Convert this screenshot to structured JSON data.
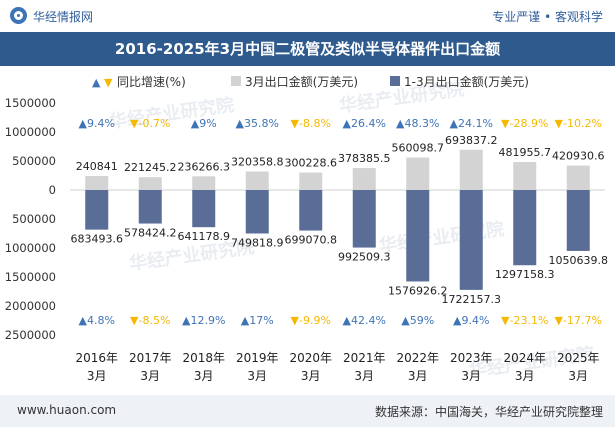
{
  "header": {
    "brand": "华经情报网",
    "tagline": "专业严谨 • 客观科学"
  },
  "footer": {
    "site": "www.huaon.com",
    "source": "数据来源：中国海关，华经产业研究院整理"
  },
  "watermark": "华经产业研究院",
  "colors": {
    "title_bg": "#2e5a8e",
    "bar_monthly": "#d3d3d3",
    "bar_cumulative": "#5a6d96",
    "up": "#3e74b6",
    "down": "#f5b800",
    "footer_bg": "#eef1f6"
  },
  "chart_data": {
    "type": "bar",
    "title": "2016-2025年3月中国二极管及类似半导体器件出口金额",
    "legend": [
      {
        "name": "同比增速(%)",
        "symbol_up": "▲",
        "symbol_down": "▼"
      },
      {
        "name": "3月出口金额(万美元)"
      },
      {
        "name": "1-3月出口金额(万美元)"
      }
    ],
    "categories": [
      "2016年\n3月",
      "2017年\n3月",
      "2018年\n3月",
      "2019年\n3月",
      "2020年\n3月",
      "2021年\n3月",
      "2022年\n3月",
      "2023年\n3月",
      "2024年\n3月",
      "2025年\n3月"
    ],
    "category_lines": [
      [
        "2016年",
        "3月"
      ],
      [
        "2017年",
        "3月"
      ],
      [
        "2018年",
        "3月"
      ],
      [
        "2019年",
        "3月"
      ],
      [
        "2020年",
        "3月"
      ],
      [
        "2021年",
        "3月"
      ],
      [
        "2022年",
        "3月"
      ],
      [
        "2023年",
        "3月"
      ],
      [
        "2024年",
        "3月"
      ],
      [
        "2025年",
        "3月"
      ]
    ],
    "series": [
      {
        "name": "3月出口金额(万美元)",
        "values": [
          240841,
          221245.2,
          236266.3,
          320358.8,
          300228.6,
          378385.5,
          560098.7,
          693837.2,
          481955.7,
          420930.6
        ]
      },
      {
        "name": "1-3月出口金额(万美元)",
        "values": [
          683493.6,
          578424.2,
          641178.9,
          749818.9,
          699070.8,
          992509.3,
          1576926.2,
          1722157.3,
          1297158.3,
          1050639.8
        ],
        "plotted_as": "negative"
      }
    ],
    "value_labels_monthly": [
      "240841",
      "221245.2",
      "236266.3",
      "320358.8",
      "300228.6",
      "378385.5",
      "560098.7",
      "693837.2",
      "481955.7",
      "420930.6"
    ],
    "value_labels_cumulative": [
      "683493.6",
      "578424.2",
      "641178.9",
      "749818.9",
      "699070.8",
      "992509.3",
      "1576926.2",
      "1722157.3",
      "1297158.3",
      "1050639.8"
    ],
    "growth_monthly_labels": [
      "9.4%",
      "-0.7%",
      "9%",
      "35.8%",
      "-8.8%",
      "26.4%",
      "48.3%",
      "24.1%",
      "-28.9%",
      "-10.2%"
    ],
    "growth_monthly_up": [
      true,
      false,
      true,
      true,
      false,
      true,
      true,
      true,
      false,
      false
    ],
    "growth_cumulative_labels": [
      "4.8%",
      "-8.5%",
      "12.9%",
      "17%",
      "-9.9%",
      "42.4%",
      "59%",
      "9.4%",
      "-23.1%",
      "-17.7%"
    ],
    "growth_cumulative_up": [
      true,
      false,
      true,
      true,
      false,
      true,
      true,
      true,
      false,
      false
    ],
    "yticks": [
      1500000,
      1000000,
      500000,
      0,
      -500000,
      -1000000,
      -1500000,
      -2000000,
      -2500000
    ],
    "ytick_labels": [
      "1500000",
      "1000000",
      "500000",
      "0",
      "500000",
      "1000000",
      "1500000",
      "2000000",
      "2500000"
    ],
    "ylim": [
      -2500000,
      1500000
    ],
    "grid": false
  }
}
